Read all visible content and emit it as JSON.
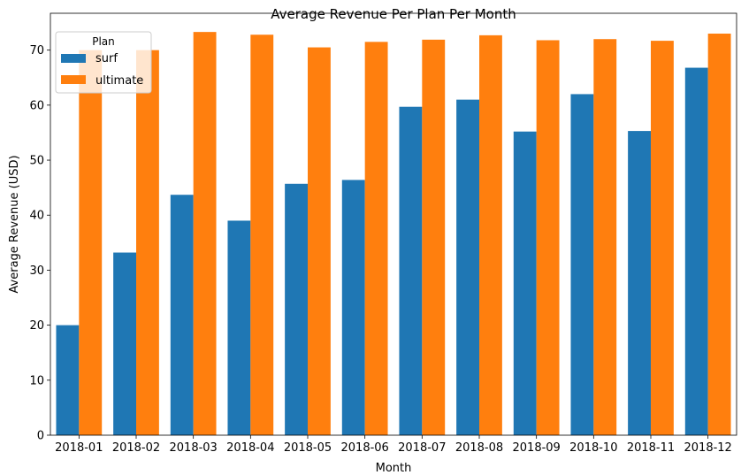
{
  "chart_data": {
    "type": "bar",
    "title": "Average Revenue Per Plan Per Month",
    "xlabel": "Month",
    "ylabel": "Average Revenue (USD)",
    "categories": [
      "2018-01",
      "2018-02",
      "2018-03",
      "2018-04",
      "2018-05",
      "2018-06",
      "2018-07",
      "2018-08",
      "2018-09",
      "2018-10",
      "2018-11",
      "2018-12"
    ],
    "series": [
      {
        "name": "surf",
        "color": "#1f77b4",
        "values": [
          20.0,
          33.2,
          43.7,
          39.0,
          45.7,
          46.4,
          59.7,
          61.0,
          55.2,
          62.0,
          55.3,
          66.8
        ]
      },
      {
        "name": "ultimate",
        "color": "#ff7f0e",
        "values": [
          70.0,
          70.0,
          73.3,
          72.8,
          70.5,
          71.5,
          71.9,
          72.7,
          71.8,
          72.0,
          71.7,
          73.0
        ]
      }
    ],
    "ylim": [
      0,
      76.7
    ],
    "yticks": [
      0,
      10,
      20,
      30,
      40,
      50,
      60,
      70
    ],
    "grid": false,
    "legend": {
      "title": "Plan",
      "placement": "top-left"
    }
  }
}
